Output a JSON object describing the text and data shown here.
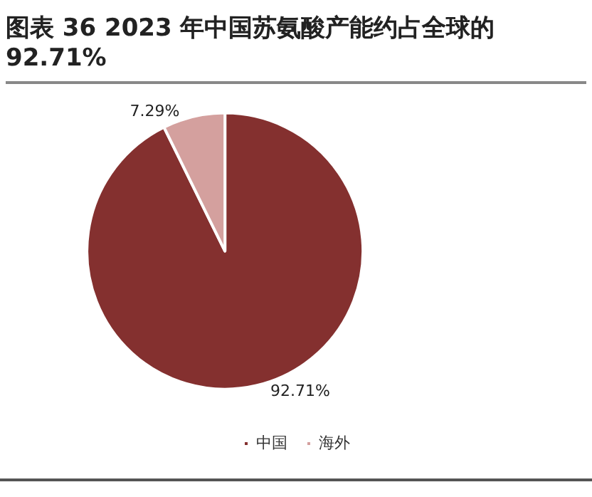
{
  "chart_data": {
    "type": "pie",
    "title": "图表 36 2023 年中国苏氨酸产能约占全球的 92.71%",
    "categories": [
      "中国",
      "海外"
    ],
    "values": [
      92.71,
      7.29
    ],
    "colors": [
      "#84302f",
      "#d4a09e"
    ],
    "value_labels": [
      "92.71%",
      "7.29%"
    ],
    "legend": "bottom"
  }
}
